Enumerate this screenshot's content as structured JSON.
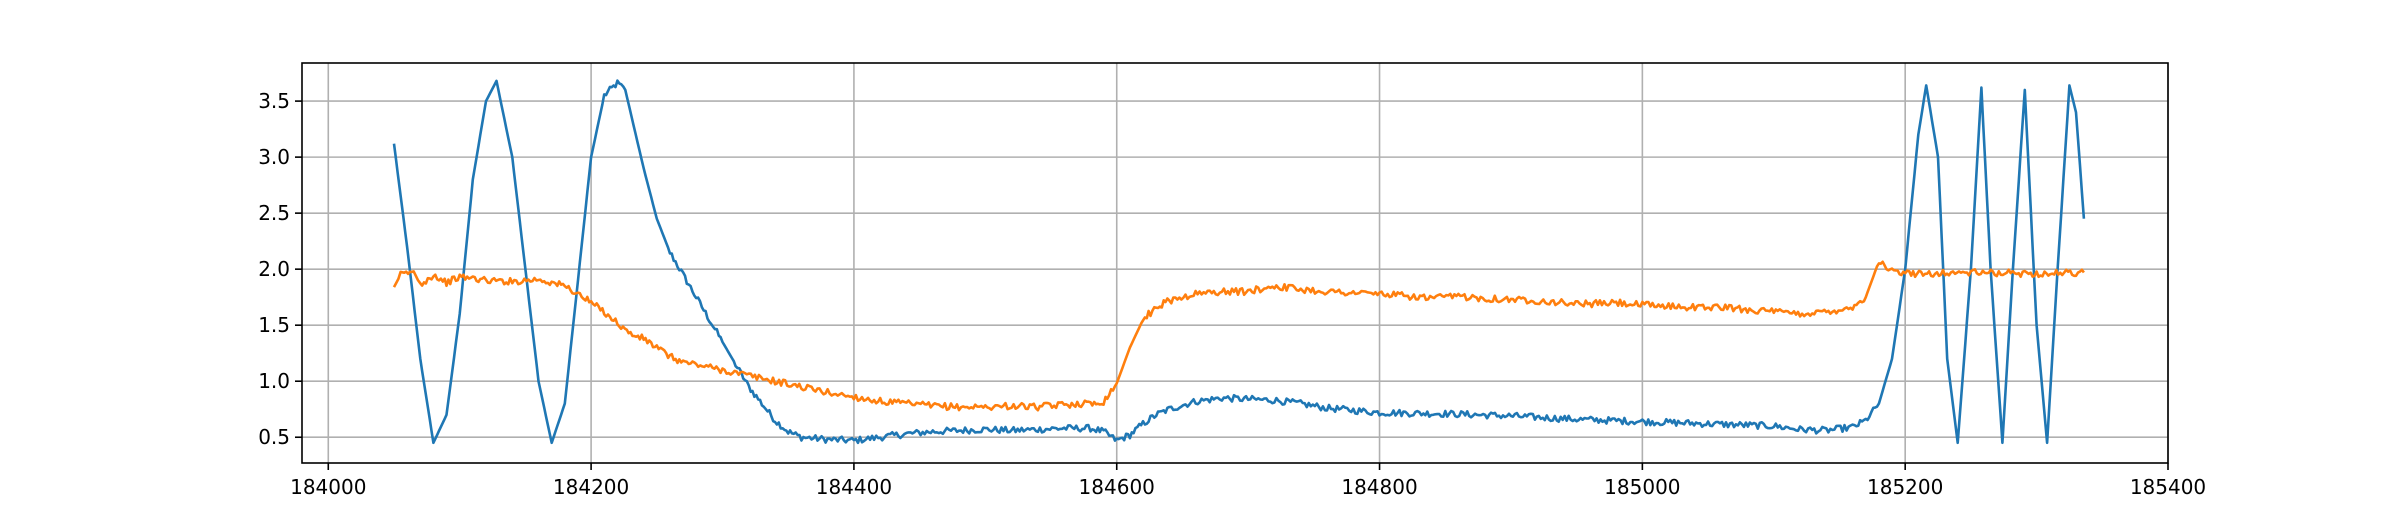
{
  "chart_data": {
    "type": "line",
    "title": "",
    "xlabel": "",
    "ylabel": "",
    "xlim": [
      183980,
      185400
    ],
    "ylim": [
      0.27,
      3.84
    ],
    "x_ticks": [
      184000,
      184200,
      184400,
      184600,
      184800,
      185000,
      185200,
      185400
    ],
    "y_ticks": [
      0.5,
      1.0,
      1.5,
      2.0,
      2.5,
      3.0,
      3.5
    ],
    "x_tick_labels": [
      "184000",
      "184200",
      "184400",
      "184600",
      "184800",
      "185000",
      "185200",
      "185400"
    ],
    "y_tick_labels": [
      "0.5",
      "1.0",
      "1.5",
      "2.0",
      "2.5",
      "3.0",
      "3.5"
    ],
    "grid": true,
    "legend": "none",
    "series": [
      {
        "color": "#1f77b4",
        "x": [
          184050,
          184060,
          184070,
          184080,
          184090,
          184100,
          184110,
          184120,
          184128,
          184140,
          184150,
          184160,
          184170,
          184180,
          184190,
          184200,
          184210,
          184220,
          184226,
          184240,
          184250,
          184260,
          184270,
          184280,
          184290,
          184300,
          184310,
          184320,
          184330,
          184340,
          184350,
          184360,
          184380,
          184400,
          184420,
          184440,
          184460,
          184480,
          184500,
          184520,
          184540,
          184560,
          184580,
          184590,
          184600,
          184610,
          184620,
          184630,
          184640,
          184660,
          184680,
          184700,
          184720,
          184740,
          184760,
          184780,
          184800,
          184850,
          184900,
          184950,
          185000,
          185050,
          185100,
          185120,
          185140,
          185160,
          185170,
          185180,
          185190,
          185200,
          185210,
          185216,
          185225,
          185232,
          185240,
          185250,
          185258,
          185265,
          185274,
          185282,
          185291,
          185300,
          185308,
          185316,
          185325,
          185330,
          185336
        ],
        "y": [
          3.12,
          2.2,
          1.2,
          0.45,
          0.7,
          1.6,
          2.8,
          3.5,
          3.68,
          3.0,
          2.0,
          1.0,
          0.45,
          0.8,
          1.9,
          3.0,
          3.55,
          3.66,
          3.6,
          2.9,
          2.45,
          2.15,
          1.95,
          1.75,
          1.55,
          1.35,
          1.15,
          0.95,
          0.8,
          0.65,
          0.55,
          0.5,
          0.48,
          0.47,
          0.5,
          0.53,
          0.55,
          0.56,
          0.57,
          0.56,
          0.57,
          0.58,
          0.58,
          0.55,
          0.47,
          0.52,
          0.62,
          0.7,
          0.75,
          0.82,
          0.85,
          0.84,
          0.83,
          0.8,
          0.76,
          0.74,
          0.72,
          0.71,
          0.69,
          0.66,
          0.64,
          0.62,
          0.6,
          0.57,
          0.56,
          0.59,
          0.65,
          0.8,
          1.2,
          2.0,
          3.2,
          3.64,
          3.0,
          1.2,
          0.45,
          2.0,
          3.62,
          2.0,
          0.45,
          2.0,
          3.6,
          1.5,
          0.45,
          2.0,
          3.64,
          3.4,
          2.45
        ]
      },
      {
        "color": "#ff7f0e",
        "x": [
          184050,
          184055,
          184065,
          184070,
          184080,
          184090,
          184100,
          184110,
          184120,
          184140,
          184160,
          184170,
          184180,
          184190,
          184200,
          184210,
          184220,
          184230,
          184240,
          184250,
          184260,
          184270,
          184280,
          184300,
          184320,
          184340,
          184360,
          184380,
          184400,
          184420,
          184440,
          184460,
          184480,
          184500,
          184520,
          184540,
          184560,
          184570,
          184580,
          184590,
          184600,
          184610,
          184620,
          184630,
          184640,
          184660,
          184680,
          184700,
          184720,
          184740,
          184760,
          184780,
          184800,
          184820,
          184840,
          184860,
          184880,
          184900,
          184920,
          184940,
          184960,
          184980,
          185000,
          185020,
          185040,
          185060,
          185080,
          185100,
          185120,
          185140,
          185160,
          185170,
          185180,
          185190,
          185200,
          185250,
          185300,
          185336
        ],
        "y": [
          1.84,
          1.95,
          1.98,
          1.86,
          1.95,
          1.88,
          1.93,
          1.92,
          1.9,
          1.89,
          1.91,
          1.88,
          1.85,
          1.78,
          1.7,
          1.62,
          1.52,
          1.42,
          1.38,
          1.3,
          1.22,
          1.17,
          1.15,
          1.1,
          1.05,
          1.0,
          0.95,
          0.9,
          0.86,
          0.82,
          0.8,
          0.78,
          0.77,
          0.77,
          0.78,
          0.77,
          0.79,
          0.8,
          0.8,
          0.82,
          0.98,
          1.3,
          1.55,
          1.66,
          1.72,
          1.78,
          1.8,
          1.8,
          1.85,
          1.82,
          1.8,
          1.79,
          1.78,
          1.76,
          1.74,
          1.76,
          1.74,
          1.73,
          1.72,
          1.7,
          1.69,
          1.7,
          1.68,
          1.67,
          1.66,
          1.66,
          1.64,
          1.62,
          1.6,
          1.62,
          1.66,
          1.75,
          2.07,
          1.98,
          1.96,
          1.97,
          1.96,
          1.97
        ]
      }
    ]
  }
}
